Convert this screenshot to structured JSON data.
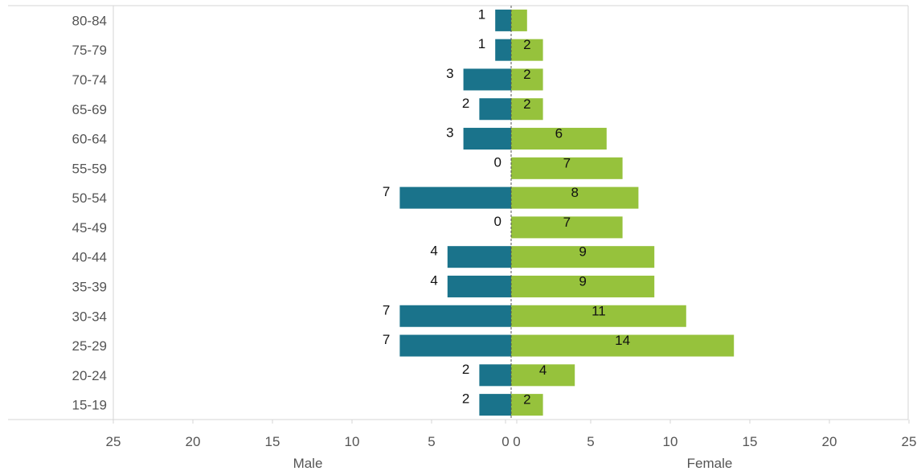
{
  "chart_data": {
    "type": "bar",
    "orientation": "horizontal",
    "layout": "population-pyramid",
    "categories": [
      "80-84",
      "75-79",
      "70-74",
      "65-69",
      "60-64",
      "55-59",
      "50-54",
      "45-49",
      "40-44",
      "35-39",
      "30-34",
      "25-29",
      "20-24",
      "15-19"
    ],
    "series": [
      {
        "name": "Male",
        "side": "left",
        "color": "#1a738b",
        "values": [
          1,
          1,
          3,
          2,
          3,
          0,
          7,
          0,
          4,
          4,
          7,
          7,
          2,
          2
        ],
        "labels": [
          "1",
          "1",
          "3",
          "2",
          "3",
          "0",
          "7",
          "0",
          "4",
          "4",
          "7",
          "7",
          "2",
          "2"
        ]
      },
      {
        "name": "Female",
        "side": "right",
        "color": "#96c23c",
        "values": [
          1,
          2,
          2,
          2,
          6,
          7,
          8,
          7,
          9,
          9,
          11,
          14,
          4,
          2
        ],
        "labels": [
          "",
          "2",
          "2",
          "2",
          "6",
          "7",
          "8",
          "7",
          "9",
          "9",
          "11",
          "14",
          "4",
          "2"
        ]
      }
    ],
    "xlim": [
      0,
      25
    ],
    "xticks": [
      0,
      5,
      10,
      15,
      20,
      25
    ],
    "xlabel_left": "Male",
    "xlabel_right": "Female",
    "grid": false,
    "legend": "none"
  }
}
